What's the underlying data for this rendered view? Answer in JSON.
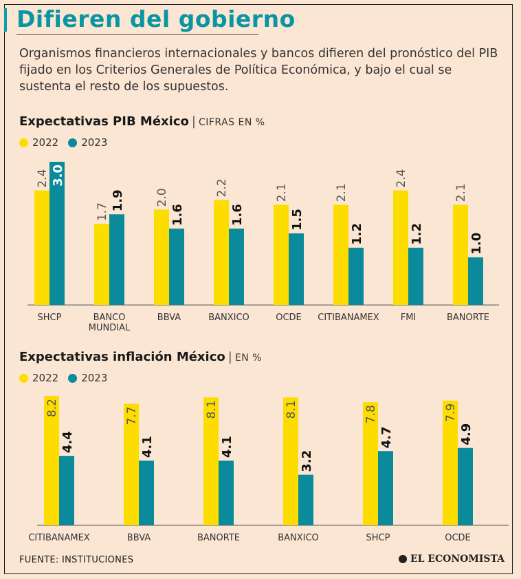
{
  "title": "Difieren del gobierno",
  "subtitle": "Organismos financieros internacionales y bancos difieren del pronóstico del PIB fijado en los Criterios Generales de Política Económica, y bajo el cual se sustenta el resto de los supuestos.",
  "colors": {
    "y2022": "#fddd00",
    "y2023": "#0a8a9b",
    "title": "#0a95a3",
    "background": "#fbe6d3"
  },
  "chart_data": [
    {
      "type": "bar",
      "title": "Expectativas PIB México",
      "unit": "CIFRAS EN %",
      "legend": [
        "2022",
        "2023"
      ],
      "categories": [
        "SHCP",
        "BANCO MUNDIAL",
        "BBVA",
        "BANXICO",
        "OCDE",
        "CITIBANAMEX",
        "FMI",
        "BANORTE"
      ],
      "series": [
        {
          "name": "2022",
          "values": [
            2.4,
            1.7,
            2.0,
            2.2,
            2.1,
            2.1,
            2.4,
            2.1
          ]
        },
        {
          "name": "2023",
          "values": [
            3.0,
            1.9,
            1.6,
            1.6,
            1.5,
            1.2,
            1.2,
            1.0
          ]
        }
      ],
      "ylim": [
        0,
        3.0
      ],
      "grid": false,
      "legend_position": "top-left"
    },
    {
      "type": "bar",
      "title": "Expectativas inflación México",
      "unit": "EN %",
      "legend": [
        "2022",
        "2023"
      ],
      "categories": [
        "CITIBANAMEX",
        "BBVA",
        "BANORTE",
        "BANXICO",
        "SHCP",
        "OCDE"
      ],
      "series": [
        {
          "name": "2022",
          "values": [
            8.2,
            7.7,
            8.1,
            8.1,
            7.8,
            7.9
          ]
        },
        {
          "name": "2023",
          "values": [
            4.4,
            4.1,
            4.1,
            3.2,
            4.7,
            4.9
          ]
        }
      ],
      "ylim": [
        0,
        8.2
      ],
      "grid": false,
      "legend_position": "top-left"
    }
  ],
  "source": "FUENTE: INSTITUCIONES",
  "brand": "EL ECONOMISTA"
}
